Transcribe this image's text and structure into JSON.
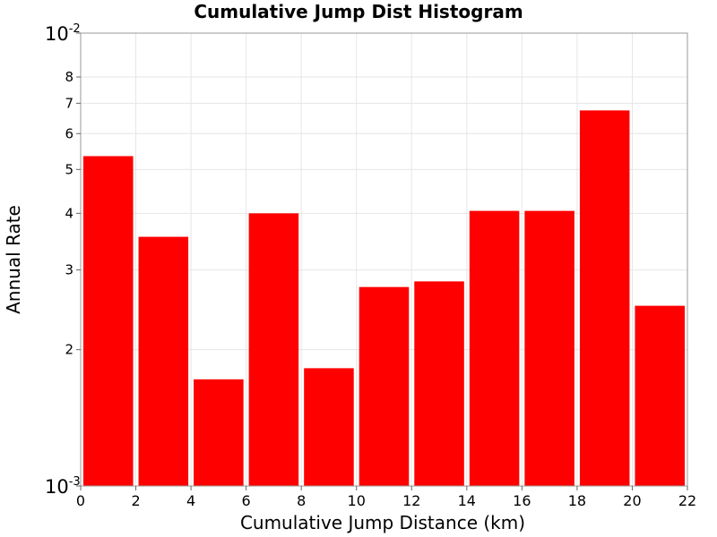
{
  "chart_data": {
    "type": "bar",
    "title": "Cumulative Jump Dist Histogram",
    "xlabel": "Cumulative Jump Distance (km)",
    "ylabel": "Annual Rate",
    "y_scale": "log",
    "xlim": [
      0,
      22
    ],
    "ylim": [
      0.001,
      0.01
    ],
    "bar_color": "#ff0000",
    "grid": true,
    "x_ticks": [
      0,
      2,
      4,
      6,
      8,
      10,
      12,
      14,
      16,
      18,
      20,
      22
    ],
    "x_tick_labels": [
      "0",
      "2",
      "4",
      "6",
      "8",
      "10",
      "12",
      "14",
      "16",
      "18",
      "20",
      "22"
    ],
    "y_decade_ticks": [
      {
        "value": 0.01,
        "base": "10",
        "exponent": "-2"
      },
      {
        "value": 0.001,
        "base": "10",
        "exponent": "-3"
      }
    ],
    "y_minor_ticks": [
      {
        "value": 0.008,
        "label": "8"
      },
      {
        "value": 0.007,
        "label": "7"
      },
      {
        "value": 0.006,
        "label": "6"
      },
      {
        "value": 0.005,
        "label": "5"
      },
      {
        "value": 0.004,
        "label": "4"
      },
      {
        "value": 0.003,
        "label": "3"
      },
      {
        "value": 0.002,
        "label": "2"
      }
    ],
    "bars": [
      {
        "x_start": 0,
        "x_end": 2,
        "value": 0.00535
      },
      {
        "x_start": 2,
        "x_end": 4,
        "value": 0.00355
      },
      {
        "x_start": 4,
        "x_end": 6,
        "value": 0.00172
      },
      {
        "x_start": 6,
        "x_end": 8,
        "value": 0.004
      },
      {
        "x_start": 8,
        "x_end": 10,
        "value": 0.00182
      },
      {
        "x_start": 10,
        "x_end": 12,
        "value": 0.00275
      },
      {
        "x_start": 12,
        "x_end": 14,
        "value": 0.00283
      },
      {
        "x_start": 14,
        "x_end": 16,
        "value": 0.00405
      },
      {
        "x_start": 16,
        "x_end": 18,
        "value": 0.00405
      },
      {
        "x_start": 18,
        "x_end": 20,
        "value": 0.00675
      },
      {
        "x_start": 20,
        "x_end": 22,
        "value": 0.0025
      }
    ]
  }
}
